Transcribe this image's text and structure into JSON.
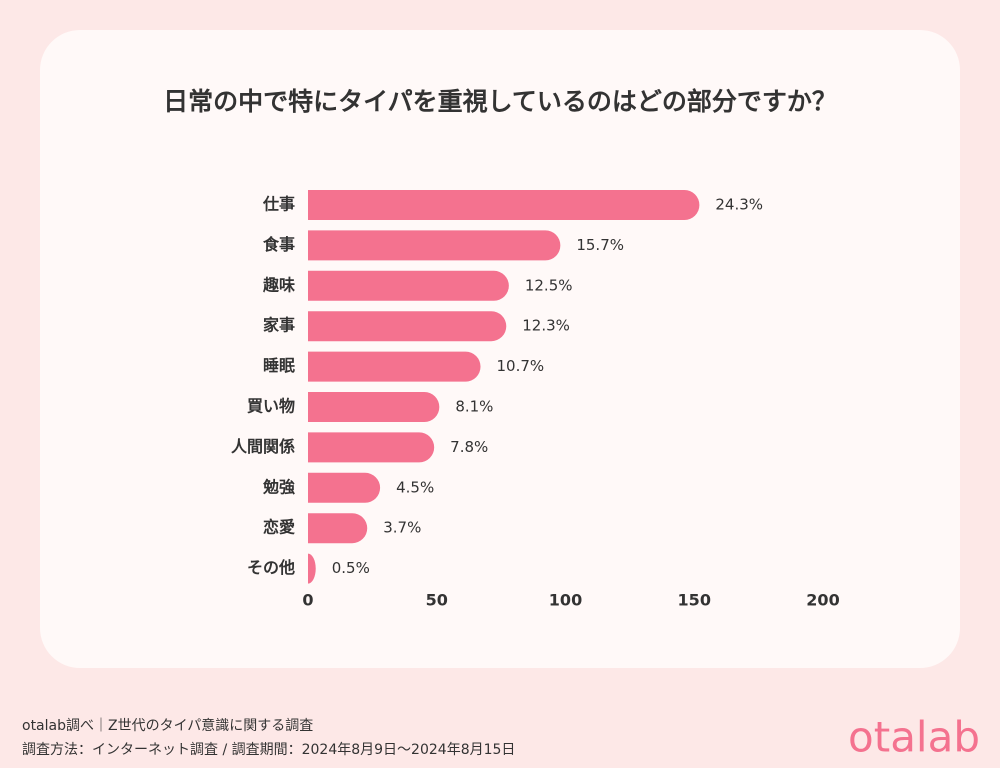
{
  "chart_data": {
    "type": "bar",
    "orientation": "horizontal",
    "title": "日常の中で特にタイパを重視しているのはどの部分ですか？",
    "categories": [
      "仕事",
      "食事",
      "趣味",
      "家事",
      "睡眠",
      "買い物",
      "人間関係",
      "勉強",
      "恋愛",
      "その他"
    ],
    "values": [
      152,
      98,
      78,
      77,
      67,
      51,
      49,
      28,
      23,
      3
    ],
    "value_labels": [
      "24.3%",
      "15.7%",
      "12.5%",
      "12.3%",
      "10.7%",
      "8.1%",
      "7.8%",
      "4.5%",
      "3.7%",
      "0.5%"
    ],
    "color": "#f4728f",
    "xlim": [
      0,
      200
    ],
    "xticks": [
      0,
      50,
      100,
      150,
      200
    ],
    "grid": false
  },
  "footer": {
    "source": "otalab調べ｜Z世代のタイパ意識に関する調査",
    "method": "調査方法：インターネット調査 / 調査期間：2024年8月9日〜2024年8月15日",
    "logo": "otalab"
  }
}
